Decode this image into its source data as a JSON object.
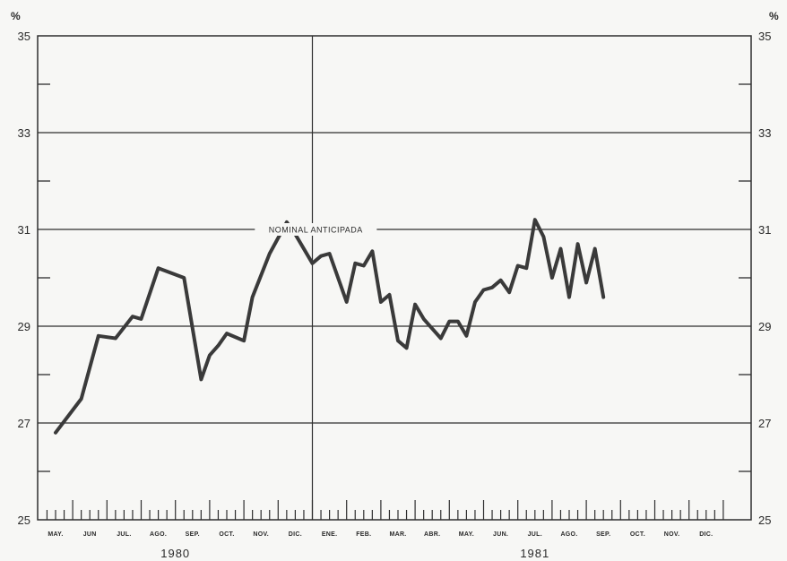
{
  "chart_data": {
    "type": "line",
    "unit_label": "%",
    "ylim": [
      25,
      35
    ],
    "yticks": [
      25,
      27,
      29,
      31,
      33,
      35
    ],
    "grid": true,
    "months": [
      "MAY.",
      "JUN",
      "JUL.",
      "AGO.",
      "SEP.",
      "OCT.",
      "NOV.",
      "DIC.",
      "ENE.",
      "FEB.",
      "MAR.",
      "ABR.",
      "MAY.",
      "JUN.",
      "JUL.",
      "AGO.",
      "SEP.",
      "OCT.",
      "NOV.",
      "DIC."
    ],
    "years": [
      {
        "label": "1980",
        "month_index": 3.5
      },
      {
        "label": "1981",
        "month_index": 14.0
      }
    ],
    "annotation": "NOMINAL ANTICIPADA",
    "series": [
      {
        "name": "NOMINAL ANTICIPADA",
        "color": "#3a3a3a",
        "x": [
          0.0,
          0.75,
          1.25,
          1.75,
          2.25,
          2.5,
          3.0,
          3.75,
          4.25,
          4.5,
          4.75,
          5.0,
          5.5,
          5.75,
          6.25,
          6.75,
          7.0,
          7.5,
          7.75,
          8.0,
          8.5,
          8.75,
          9.0,
          9.25,
          9.5,
          9.75,
          10.0,
          10.25,
          10.5,
          10.75,
          11.0,
          11.25,
          11.5,
          11.75,
          12.0,
          12.25,
          12.5,
          12.75,
          13.0,
          13.25,
          13.5,
          13.75,
          14.0,
          14.25,
          14.5,
          14.75,
          15.0,
          15.25,
          15.5,
          15.75,
          16.0
        ],
        "values": [
          26.8,
          27.5,
          28.8,
          28.75,
          29.2,
          29.15,
          30.2,
          30.0,
          27.9,
          28.4,
          28.6,
          28.85,
          28.7,
          29.6,
          30.5,
          31.15,
          30.9,
          30.3,
          30.45,
          30.5,
          29.5,
          30.3,
          30.25,
          30.55,
          29.5,
          29.65,
          28.7,
          28.55,
          29.45,
          29.15,
          28.95,
          28.75,
          29.1,
          29.1,
          28.8,
          29.5,
          29.75,
          29.8,
          29.95,
          29.7,
          30.25,
          30.2,
          31.2,
          30.85,
          30.0,
          30.6,
          29.6,
          30.7,
          29.9,
          30.6,
          29.6
        ]
      }
    ]
  }
}
